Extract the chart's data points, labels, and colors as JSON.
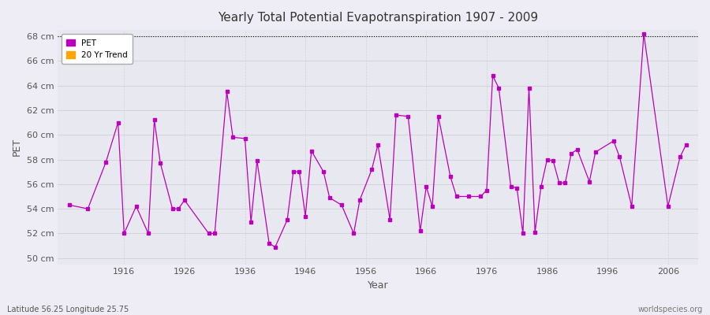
{
  "title": "Yearly Total Potential Evapotranspiration 1907 - 2009",
  "xlabel": "Year",
  "ylabel": "PET",
  "footer_left": "Latitude 56.25 Longitude 25.75",
  "footer_right": "worldspecies.org",
  "ylim": [
    49.5,
    68.5
  ],
  "ytick_values": [
    50,
    52,
    54,
    56,
    58,
    60,
    62,
    64,
    66,
    68
  ],
  "ytick_labels": [
    "50 cm",
    "52 cm",
    "54 cm",
    "56 cm",
    "58 cm",
    "60 cm",
    "62 cm",
    "64 cm",
    "66 cm",
    "68 cm"
  ],
  "xlim": [
    1905,
    2011
  ],
  "xtick_values": [
    1916,
    1926,
    1936,
    1946,
    1956,
    1966,
    1976,
    1986,
    1996,
    2006
  ],
  "background_color": "#eeedf5",
  "plot_bg_color": "#e8e8f0",
  "line_color": "#bb00bb",
  "dotted_line_y": 68,
  "legend_pet_color": "#bb00bb",
  "legend_trend_color": "#ffa500",
  "years": [
    1907,
    1910,
    1913,
    1915,
    1916,
    1918,
    1920,
    1921,
    1922,
    1924,
    1925,
    1926,
    1930,
    1931,
    1933,
    1934,
    1936,
    1937,
    1938,
    1940,
    1941,
    1943,
    1944,
    1945,
    1946,
    1947,
    1949,
    1950,
    1952,
    1954,
    1955,
    1957,
    1958,
    1960,
    1961,
    1963,
    1965,
    1966,
    1967,
    1968,
    1970,
    1971,
    1973,
    1975,
    1976,
    1977,
    1978,
    1980,
    1981,
    1982,
    1983,
    1984,
    1985,
    1986,
    1987,
    1988,
    1989,
    1990,
    1991,
    1993,
    1994,
    1997,
    1998,
    2000,
    2002,
    2006,
    2008,
    2009
  ],
  "pet_values": [
    54.3,
    54.0,
    57.8,
    61.0,
    52.0,
    54.2,
    52.0,
    61.2,
    57.7,
    54.0,
    54.0,
    54.7,
    52.0,
    52.0,
    63.5,
    59.8,
    59.7,
    52.9,
    57.9,
    51.2,
    50.9,
    53.1,
    57.0,
    57.0,
    53.4,
    58.7,
    57.0,
    54.9,
    54.3,
    52.0,
    54.7,
    57.2,
    59.2,
    53.1,
    61.6,
    61.5,
    52.2,
    55.8,
    54.2,
    61.5,
    56.6,
    55.0,
    55.0,
    55.0,
    55.5,
    64.8,
    63.8,
    55.8,
    55.7,
    52.0,
    63.8,
    52.1,
    55.8,
    58.0,
    57.9,
    56.1,
    56.1,
    58.5,
    58.8,
    56.2,
    58.6,
    59.5,
    58.2,
    54.2,
    68.2,
    54.2,
    58.2,
    59.2
  ]
}
